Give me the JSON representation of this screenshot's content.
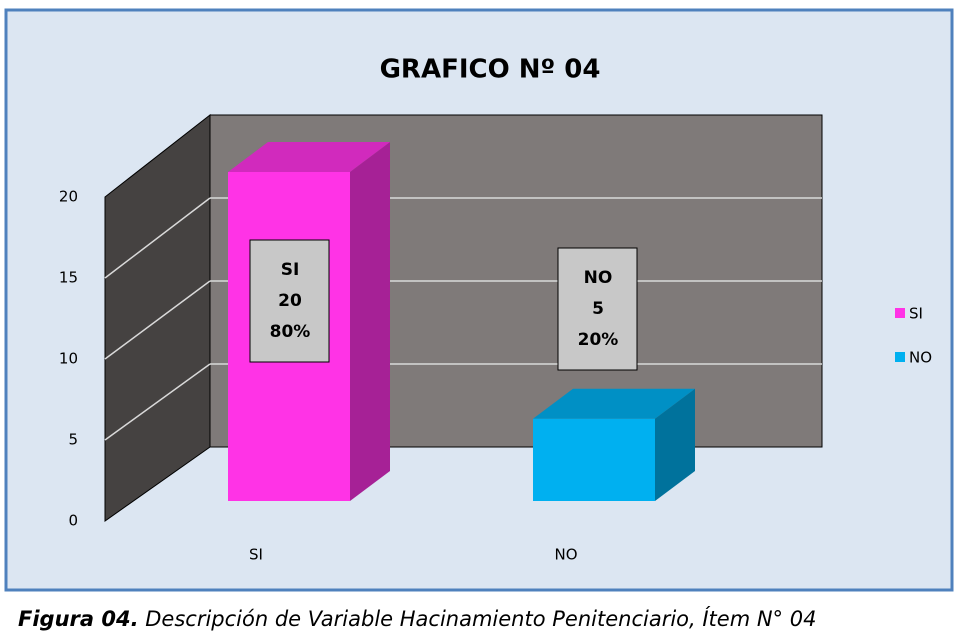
{
  "chart_data": {
    "type": "bar3d",
    "title": "GRAFICO Nº 04",
    "categories": [
      "SI",
      "NO"
    ],
    "values": [
      20,
      5
    ],
    "percentages": [
      {
        "value": 80,
        "label": "80%"
      },
      {
        "value": 20,
        "label": "20%"
      }
    ],
    "colors": [
      "#ff33e6",
      "#00b0f0"
    ],
    "ylim": [
      0,
      20
    ],
    "yticks": [
      0,
      5,
      10,
      15,
      20
    ],
    "grid": true,
    "legend": "right"
  },
  "caption": {
    "label": "Figura 04.",
    "text": " Descripción de Variable Hacinamiento Penitenciario, Ítem N° 04"
  }
}
